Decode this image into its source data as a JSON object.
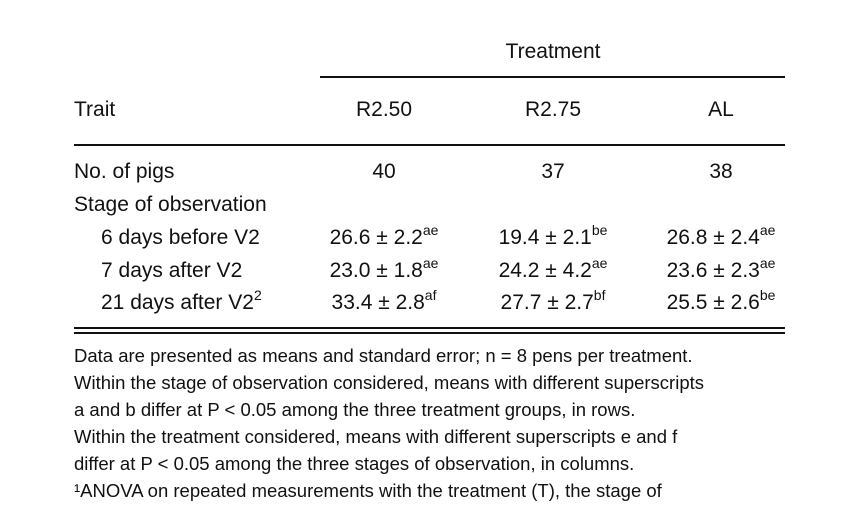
{
  "header": {
    "group": "Treatment",
    "trait": "Trait",
    "columns": [
      "R2.50",
      "R2.75",
      "AL"
    ]
  },
  "table": {
    "pigs": {
      "label": "No. of pigs",
      "cells": [
        "40",
        "37",
        "38"
      ]
    },
    "section": "Stage of observation",
    "rows": [
      {
        "label": "6 days before V2",
        "cells": [
          {
            "value": "26.6 ± 2.2",
            "sup": "ae"
          },
          {
            "value": "19.4 ± 2.1",
            "sup": "be"
          },
          {
            "value": "26.8 ± 2.4",
            "sup": "ae"
          }
        ]
      },
      {
        "label": "7 days after V2",
        "cells": [
          {
            "value": "23.0 ± 1.8",
            "sup": "ae"
          },
          {
            "value": "24.2 ± 4.2",
            "sup": "ae"
          },
          {
            "value": "23.6 ± 2.3",
            "sup": "ae"
          }
        ]
      },
      {
        "label": "21 days after V2",
        "label_sup": "2",
        "cells": [
          {
            "value": "33.4 ± 2.8",
            "sup": "af"
          },
          {
            "value": "27.7 ± 2.7",
            "sup": "bf"
          },
          {
            "value": "25.5 ± 2.6",
            "sup": "be"
          }
        ]
      }
    ]
  },
  "notes": [
    "Data are presented as means and standard error; n = 8 pens per treatment.",
    "Within the stage of observation considered, means with different superscripts",
    "a and b differ at P < 0.05 among the three treatment groups, in rows.",
    "Within the treatment considered, means with different superscripts e and f",
    "differ at P < 0.05 among the three stages of observation, in columns.",
    "¹ANOVA on repeated measurements with the treatment (T), the stage of"
  ]
}
